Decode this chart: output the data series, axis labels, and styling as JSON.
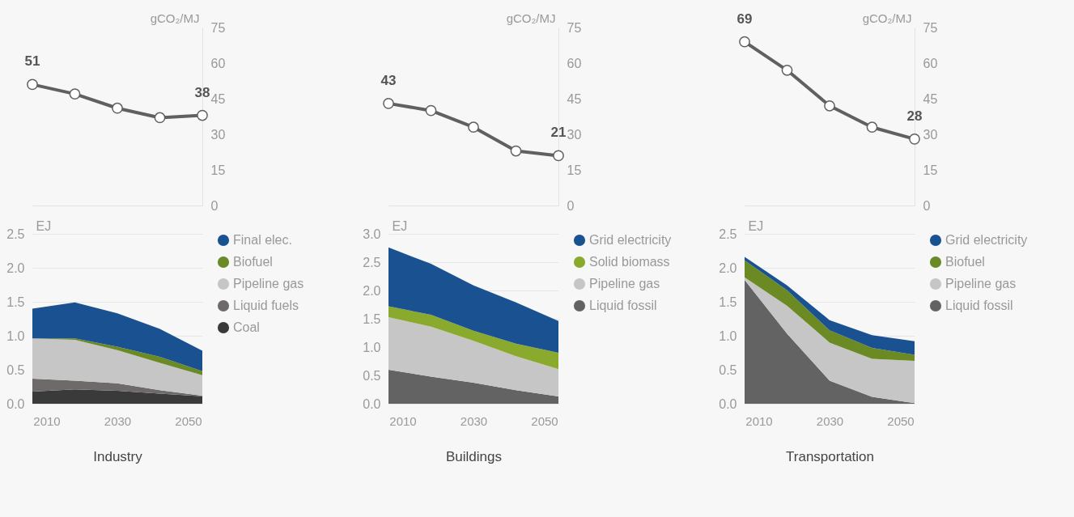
{
  "chart_data": [
    {
      "type": "line",
      "x": [
        2006,
        2018,
        2030,
        2042,
        2054
      ],
      "xlim": [
        2006,
        2054
      ],
      "tick_labels": "y",
      "y2label": "gCO₂/MJ",
      "y2lim": [
        0,
        75
      ],
      "y2ticks": [
        0,
        15,
        30,
        45,
        60,
        75
      ],
      "marker": "circle",
      "series": [
        {
          "axis": "y2",
          "color": "#606060",
          "values": [
            51,
            47,
            41,
            37,
            38
          ],
          "value_labels": [
            "51",
            null,
            null,
            null,
            "38"
          ]
        }
      ]
    },
    {
      "type": "area",
      "stacked": true,
      "x": [
        2006,
        2018,
        2030,
        2042,
        2054
      ],
      "xlim": [
        2006,
        2054
      ],
      "xticks": [
        2010,
        2030,
        2050
      ],
      "ylim": [
        0,
        2.5
      ],
      "yticks": [
        {
          "value": 0,
          "label": "0.0"
        },
        {
          "value": 0.5,
          "label": "0.5"
        },
        {
          "value": 1,
          "label": "1.0"
        },
        {
          "value": 1.5,
          "label": "1.5"
        },
        {
          "value": 2,
          "label": "2.0"
        },
        {
          "value": 2.5,
          "label": "2.5"
        }
      ],
      "ylabel": "EJ",
      "xlabel": "Industry",
      "grid": "y",
      "legend": "right",
      "series": [
        {
          "name": "Coal",
          "color": "#3a3a3a",
          "values": [
            0.18,
            0.21,
            0.19,
            0.15,
            0.11
          ]
        },
        {
          "name": "Liquid fuels",
          "color": "#6e6a6a",
          "values": [
            0.19,
            0.13,
            0.11,
            0.05,
            0.01
          ]
        },
        {
          "name": "Pipeline gas",
          "color": "#c6c6c6",
          "values": [
            0.59,
            0.6,
            0.49,
            0.4,
            0.3
          ]
        },
        {
          "name": "Biofuel",
          "color": "#6b8a24",
          "values": [
            0,
            0.02,
            0.05,
            0.09,
            0.06
          ]
        },
        {
          "name": "Final elec.",
          "color": "#1a5190",
          "values": [
            0.44,
            0.53,
            0.49,
            0.41,
            0.3
          ]
        }
      ]
    },
    {
      "type": "line",
      "x": [
        2006,
        2018,
        2030,
        2042,
        2054
      ],
      "xlim": [
        2006,
        2054
      ],
      "tick_labels": "y",
      "y2label": "gCO₂/MJ",
      "y2lim": [
        0,
        75
      ],
      "y2ticks": [
        0,
        15,
        30,
        45,
        60,
        75
      ],
      "marker": "circle",
      "series": [
        {
          "axis": "y2",
          "color": "#606060",
          "values": [
            43,
            40,
            33,
            23,
            21
          ],
          "value_labels": [
            "43",
            null,
            null,
            null,
            "21"
          ]
        }
      ]
    },
    {
      "type": "area",
      "stacked": true,
      "x": [
        2006,
        2018,
        2030,
        2042,
        2054
      ],
      "xlim": [
        2006,
        2054
      ],
      "xticks": [
        2010,
        2030,
        2050
      ],
      "ylim": [
        0,
        3
      ],
      "yticks": [
        {
          "value": 0,
          "label": "0.0"
        },
        {
          "value": 0.5,
          "label": "0.5"
        },
        {
          "value": 1,
          "label": "1.0"
        },
        {
          "value": 1.5,
          "label": "1.5"
        },
        {
          "value": 2,
          "label": "2.0"
        },
        {
          "value": 2.5,
          "label": "2.5"
        },
        {
          "value": 3,
          "label": "3.0"
        }
      ],
      "ylabel": "EJ",
      "xlabel": "Buildings",
      "grid": "y",
      "legend": "right",
      "series": [
        {
          "name": "Liquid fossil",
          "color": "#636363",
          "values": [
            0.6,
            0.48,
            0.37,
            0.24,
            0.13
          ]
        },
        {
          "name": "Pipeline gas",
          "color": "#c6c6c6",
          "values": [
            0.93,
            0.88,
            0.74,
            0.6,
            0.48
          ]
        },
        {
          "name": "Solid biomass",
          "color": "#8aaa2e",
          "values": [
            0.19,
            0.21,
            0.18,
            0.22,
            0.29
          ]
        },
        {
          "name": "Grid electricity",
          "color": "#1a5190",
          "values": [
            1.04,
            0.9,
            0.8,
            0.73,
            0.56
          ]
        }
      ]
    },
    {
      "type": "line",
      "x": [
        2006,
        2018,
        2030,
        2042,
        2054
      ],
      "xlim": [
        2006,
        2054
      ],
      "tick_labels": "y",
      "y2label": "gCO₂/MJ",
      "y2lim": [
        0,
        75
      ],
      "y2ticks": [
        0,
        15,
        30,
        45,
        60,
        75
      ],
      "marker": "circle",
      "series": [
        {
          "axis": "y2",
          "color": "#606060",
          "values": [
            69,
            57,
            42,
            33,
            28
          ],
          "value_labels": [
            "69",
            null,
            null,
            null,
            "28"
          ]
        }
      ]
    },
    {
      "type": "area",
      "stacked": true,
      "x": [
        2006,
        2018,
        2030,
        2042,
        2054
      ],
      "xlim": [
        2006,
        2054
      ],
      "xticks": [
        2010,
        2030,
        2050
      ],
      "ylim": [
        0,
        2.5
      ],
      "yticks": [
        {
          "value": 0,
          "label": "0.0"
        },
        {
          "value": 0.5,
          "label": "0.5"
        },
        {
          "value": 1,
          "label": "1.0"
        },
        {
          "value": 1.5,
          "label": "1.5"
        },
        {
          "value": 2,
          "label": "2.0"
        },
        {
          "value": 2.5,
          "label": "2.5"
        }
      ],
      "ylabel": "EJ",
      "xlabel": "Transportation",
      "grid": "y",
      "legend": "right",
      "series": [
        {
          "name": "Liquid fossil",
          "color": "#636363",
          "values": [
            1.82,
            1.03,
            0.34,
            0.1,
            0.01
          ]
        },
        {
          "name": "Pipeline gas",
          "color": "#c6c6c6",
          "values": [
            0.04,
            0.41,
            0.56,
            0.56,
            0.62
          ]
        },
        {
          "name": "Biofuel",
          "color": "#6b8a24",
          "values": [
            0.25,
            0.23,
            0.18,
            0.16,
            0.09
          ]
        },
        {
          "name": "Grid electricity",
          "color": "#1a5190",
          "values": [
            0.05,
            0.07,
            0.15,
            0.19,
            0.2
          ]
        }
      ]
    }
  ]
}
